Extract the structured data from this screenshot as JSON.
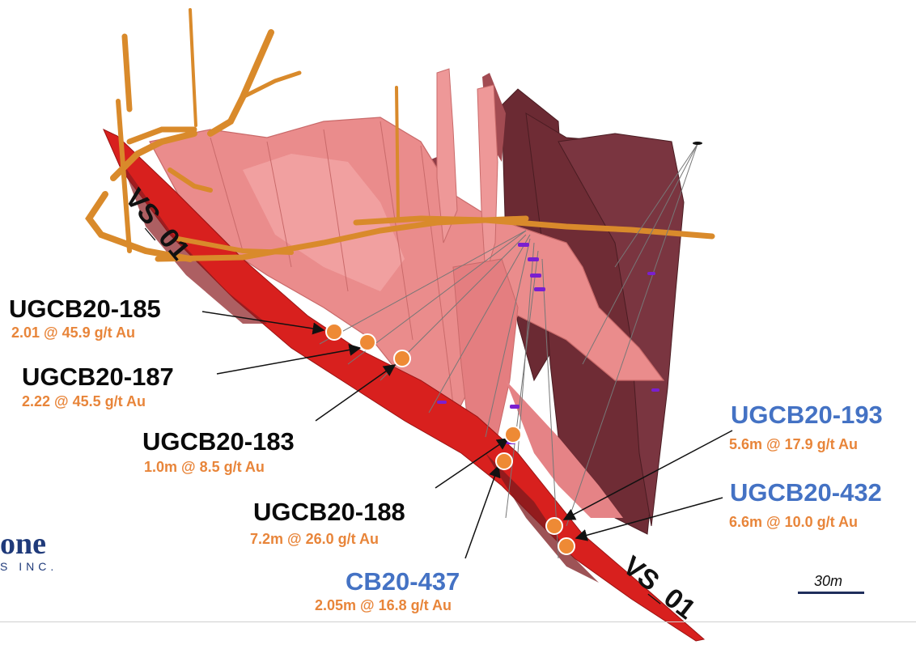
{
  "colors": {
    "black_label": "#0a0a0a",
    "blue_label": "#4472c4",
    "orange_grade": "#e8853a",
    "intercept_fill": "#ee8a35",
    "vein_red": "#d8201e",
    "solid_pink": "#ea8c8c",
    "solid_dark": "#6b2a33",
    "workings": "#d98a2b"
  },
  "vein_labels": [
    "VS_01",
    "VS_01"
  ],
  "logo": {
    "main": "one",
    "sub": "S INC."
  },
  "scale": {
    "label": "30m"
  },
  "holes": [
    {
      "name": "UGCB20-185",
      "grade": "2.01 @ 45.9 g/t Au",
      "name_color": "black"
    },
    {
      "name": "UGCB20-187",
      "grade": "2.22 @ 45.5 g/t Au",
      "name_color": "black"
    },
    {
      "name": "UGCB20-183",
      "grade": "1.0m @ 8.5 g/t Au",
      "name_color": "black"
    },
    {
      "name": "UGCB20-188",
      "grade": "7.2m @ 26.0 g/t Au",
      "name_color": "black"
    },
    {
      "name": "CB20-437",
      "grade": "2.05m @ 16.8 g/t Au",
      "name_color": "blue"
    },
    {
      "name": "UGCB20-193",
      "grade": "5.6m @ 17.9 g/t Au",
      "name_color": "blue"
    },
    {
      "name": "UGCB20-432",
      "grade": "6.6m @ 10.0 g/t Au",
      "name_color": "blue"
    }
  ]
}
